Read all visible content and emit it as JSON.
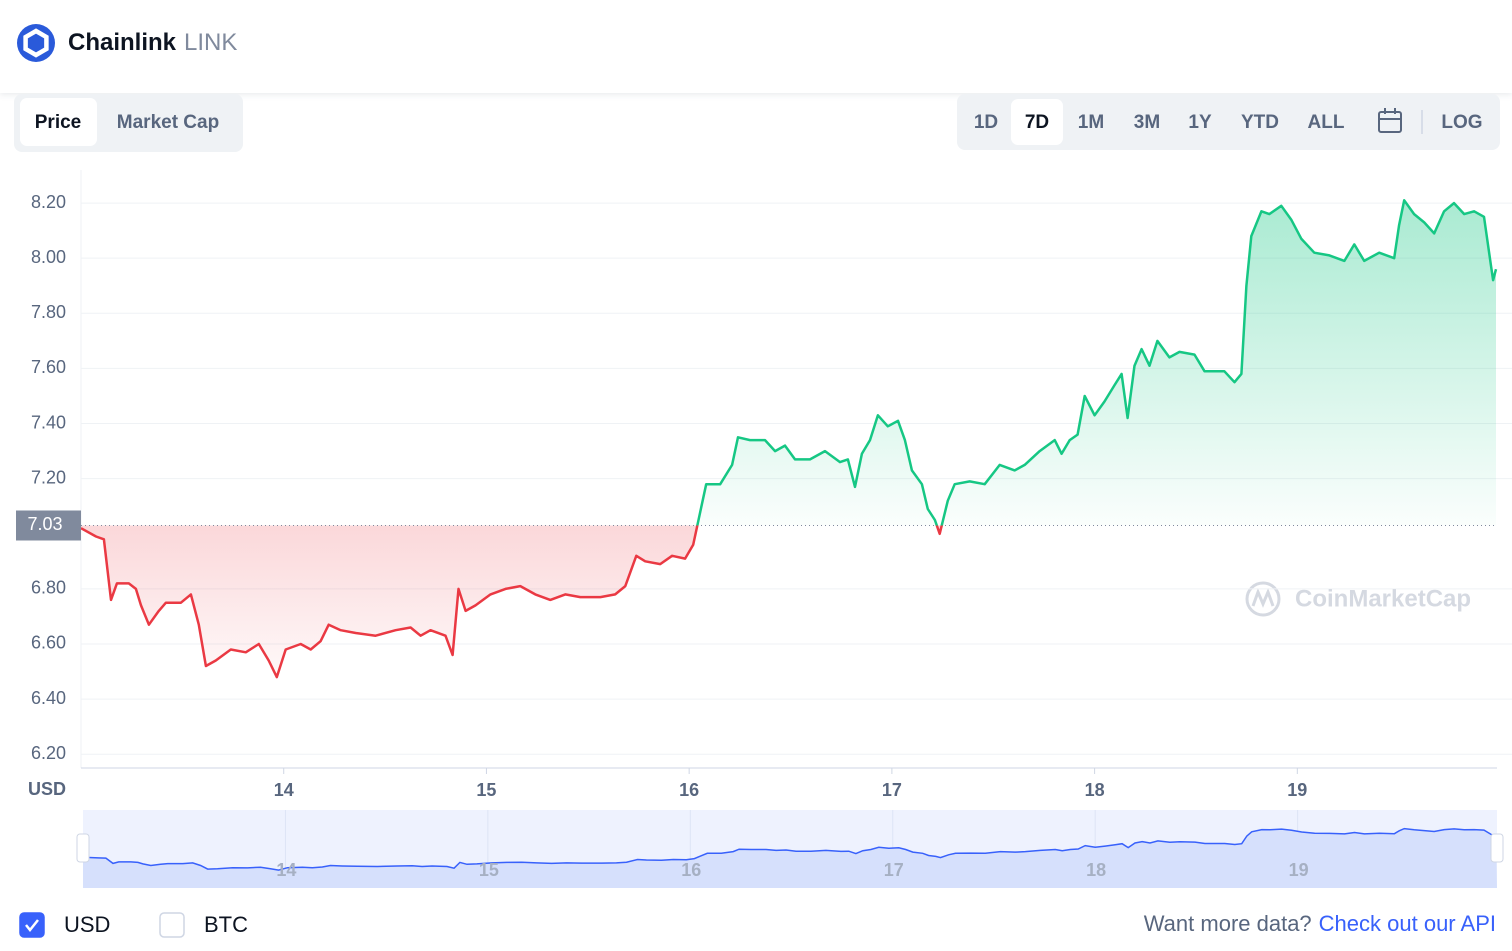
{
  "header": {
    "name": "Chainlink",
    "symbol": "LINK"
  },
  "tabs": [
    "Price",
    "Market Cap"
  ],
  "selected_tab": 0,
  "ranges": [
    "1D",
    "7D",
    "1M",
    "3M",
    "1Y",
    "YTD",
    "ALL"
  ],
  "selected_range": 1,
  "log_label": "LOG",
  "chart_data": {
    "type": "line",
    "y_label": "USD",
    "watermark": "CoinMarketCap",
    "baseline": 7.03,
    "color_up": "#16c784",
    "color_down": "#ea3943",
    "grid": true,
    "xlim": [
      13.0,
      19.985
    ],
    "xticks": [
      14,
      15,
      16,
      17,
      18,
      19
    ],
    "ylim": [
      6.15,
      8.32
    ],
    "yticks": [
      {
        "value": 6.2,
        "label": "6.20"
      },
      {
        "value": 6.4,
        "label": "6.40"
      },
      {
        "value": 6.6,
        "label": "6.60"
      },
      {
        "value": 6.8,
        "label": "6.80"
      },
      {
        "value": 7.2,
        "label": "7.20"
      },
      {
        "value": 7.4,
        "label": "7.40"
      },
      {
        "value": 7.6,
        "label": "7.60"
      },
      {
        "value": 7.8,
        "label": "7.80"
      },
      {
        "value": 8.0,
        "label": "8.00"
      },
      {
        "value": 8.2,
        "label": "8.20"
      }
    ],
    "x": [
      13.0,
      13.074,
      13.113,
      13.148,
      13.177,
      13.236,
      13.271,
      13.296,
      13.335,
      13.384,
      13.419,
      13.493,
      13.542,
      13.581,
      13.616,
      13.665,
      13.739,
      13.813,
      13.877,
      13.926,
      13.966,
      14.01,
      14.084,
      14.133,
      14.182,
      14.222,
      14.281,
      14.355,
      14.453,
      14.552,
      14.626,
      14.675,
      14.724,
      14.798,
      14.833,
      14.862,
      14.897,
      14.946,
      15.02,
      15.094,
      15.167,
      15.241,
      15.315,
      15.389,
      15.463,
      15.562,
      15.635,
      15.685,
      15.739,
      15.783,
      15.857,
      15.916,
      15.98,
      16.02,
      16.049,
      16.084,
      16.153,
      16.212,
      16.241,
      16.3,
      16.374,
      16.424,
      16.473,
      16.522,
      16.596,
      16.67,
      16.744,
      16.783,
      16.818,
      16.852,
      16.892,
      16.931,
      16.98,
      17.03,
      17.064,
      17.099,
      17.148,
      17.177,
      17.212,
      17.236,
      17.276,
      17.31,
      17.384,
      17.458,
      17.532,
      17.606,
      17.655,
      17.729,
      17.803,
      17.837,
      17.877,
      17.916,
      17.951,
      18.0,
      18.049,
      18.099,
      18.133,
      18.163,
      18.197,
      18.232,
      18.271,
      18.31,
      18.369,
      18.419,
      18.493,
      18.542,
      18.591,
      18.64,
      18.69,
      18.724,
      18.749,
      18.773,
      18.823,
      18.862,
      18.921,
      18.97,
      19.02,
      19.084,
      19.158,
      19.232,
      19.281,
      19.33,
      19.404,
      19.478,
      19.502,
      19.527,
      19.576,
      19.626,
      19.675,
      19.724,
      19.773,
      19.823,
      19.872,
      19.921,
      19.956,
      19.966,
      19.98
    ],
    "values": [
      7.02,
      6.99,
      6.98,
      6.76,
      6.82,
      6.82,
      6.8,
      6.74,
      6.67,
      6.72,
      6.75,
      6.75,
      6.78,
      6.67,
      6.52,
      6.54,
      6.58,
      6.57,
      6.6,
      6.54,
      6.48,
      6.58,
      6.6,
      6.58,
      6.61,
      6.67,
      6.65,
      6.64,
      6.63,
      6.65,
      6.66,
      6.63,
      6.65,
      6.63,
      6.56,
      6.8,
      6.72,
      6.74,
      6.78,
      6.8,
      6.81,
      6.78,
      6.76,
      6.78,
      6.77,
      6.77,
      6.78,
      6.81,
      6.92,
      6.9,
      6.89,
      6.92,
      6.91,
      6.96,
      7.06,
      7.18,
      7.18,
      7.25,
      7.35,
      7.34,
      7.34,
      7.3,
      7.32,
      7.27,
      7.27,
      7.3,
      7.26,
      7.27,
      7.17,
      7.29,
      7.34,
      7.43,
      7.39,
      7.41,
      7.34,
      7.23,
      7.18,
      7.09,
      7.05,
      7.0,
      7.12,
      7.18,
      7.19,
      7.18,
      7.25,
      7.23,
      7.25,
      7.3,
      7.34,
      7.29,
      7.34,
      7.36,
      7.5,
      7.43,
      7.48,
      7.54,
      7.58,
      7.42,
      7.61,
      7.67,
      7.61,
      7.7,
      7.64,
      7.66,
      7.65,
      7.59,
      7.59,
      7.59,
      7.55,
      7.58,
      7.9,
      8.08,
      8.17,
      8.16,
      8.19,
      8.14,
      8.07,
      8.02,
      8.01,
      7.99,
      8.05,
      7.99,
      8.02,
      8.0,
      8.12,
      8.21,
      8.16,
      8.13,
      8.09,
      8.17,
      8.2,
      8.16,
      8.17,
      8.15,
      7.97,
      7.92,
      7.96
    ]
  },
  "footer": {
    "currencies": [
      {
        "label": "USD",
        "checked": true
      },
      {
        "label": "BTC",
        "checked": false
      }
    ],
    "prompt": "Want more data?",
    "link": "Check out our API"
  }
}
